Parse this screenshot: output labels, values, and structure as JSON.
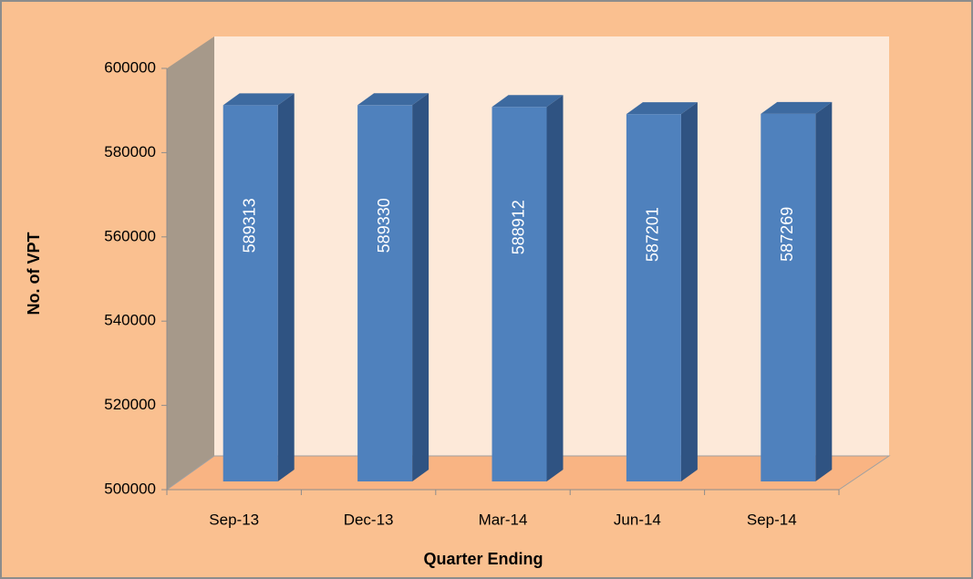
{
  "chart_data": {
    "type": "bar",
    "xlabel": "Quarter Ending",
    "ylabel": "No. of VPT",
    "categories": [
      "Sep-13",
      "Dec-13",
      "Mar-14",
      "Jun-14",
      "Sep-14"
    ],
    "values": [
      589313,
      589330,
      588912,
      587201,
      587269
    ],
    "color": "#4f81bd",
    "ylim": [
      500000,
      600000
    ],
    "yticks": [
      500000,
      520000,
      540000,
      560000,
      580000,
      600000
    ],
    "grid": false
  }
}
